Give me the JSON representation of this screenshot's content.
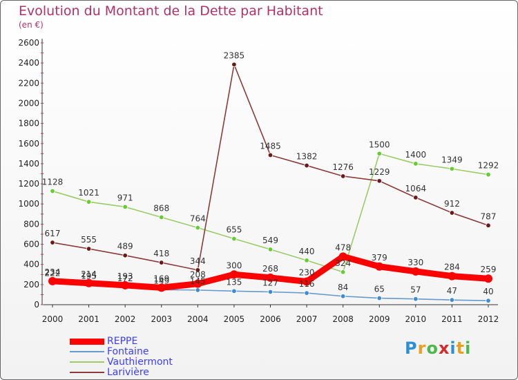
{
  "header": {
    "title": "Evolution du Montant de la Dette par Habitant",
    "unit": "(en €)"
  },
  "logo": {
    "letters": [
      "P",
      "r",
      "o",
      "x",
      "i",
      "t",
      "i"
    ],
    "colors": [
      "#2a8fd4",
      "#e8a01e",
      "#4bb84b",
      "#d42a2a",
      "#2a8fd4",
      "#e8a01e",
      "#4bb84b"
    ]
  },
  "chart_data": {
    "type": "line",
    "x": [
      "2000",
      "2001",
      "2002",
      "2003",
      "2004",
      "2005",
      "2006",
      "2007",
      "2008",
      "2009",
      "2010",
      "2011",
      "2012"
    ],
    "ylim": [
      0,
      2600
    ],
    "yticks": [
      0,
      200,
      400,
      600,
      800,
      1000,
      1200,
      1400,
      1600,
      1800,
      2000,
      2200,
      2400,
      2600
    ],
    "grid": false,
    "legend_position": "bottom-left",
    "series": [
      {
        "name": "Vauthiermont",
        "color": "#99cc66",
        "marker": "#66cc33",
        "values": [
          1128,
          1021,
          971,
          868,
          764,
          655,
          549,
          440,
          324,
          1500,
          1400,
          1349,
          1292
        ]
      },
      {
        "name": "Larivière",
        "color": "#8b3a3a",
        "marker": "#6b1a1a",
        "values": [
          617,
          555,
          489,
          418,
          344,
          2385,
          1485,
          1382,
          1276,
          1229,
          1064,
          912,
          787
        ]
      },
      {
        "name": "Fontaine",
        "color": "#6699cc",
        "marker": "#3d8bd4",
        "values": [
          222,
          195,
          172,
          149,
          145,
          135,
          127,
          116,
          84,
          65,
          57,
          47,
          40
        ]
      },
      {
        "name": "REPPE",
        "color": "#ff0000",
        "marker": "#ff0000",
        "values": [
          234,
          214,
          193,
          169,
          208,
          300,
          268,
          230,
          478,
          379,
          330,
          284,
          259
        ]
      }
    ]
  }
}
